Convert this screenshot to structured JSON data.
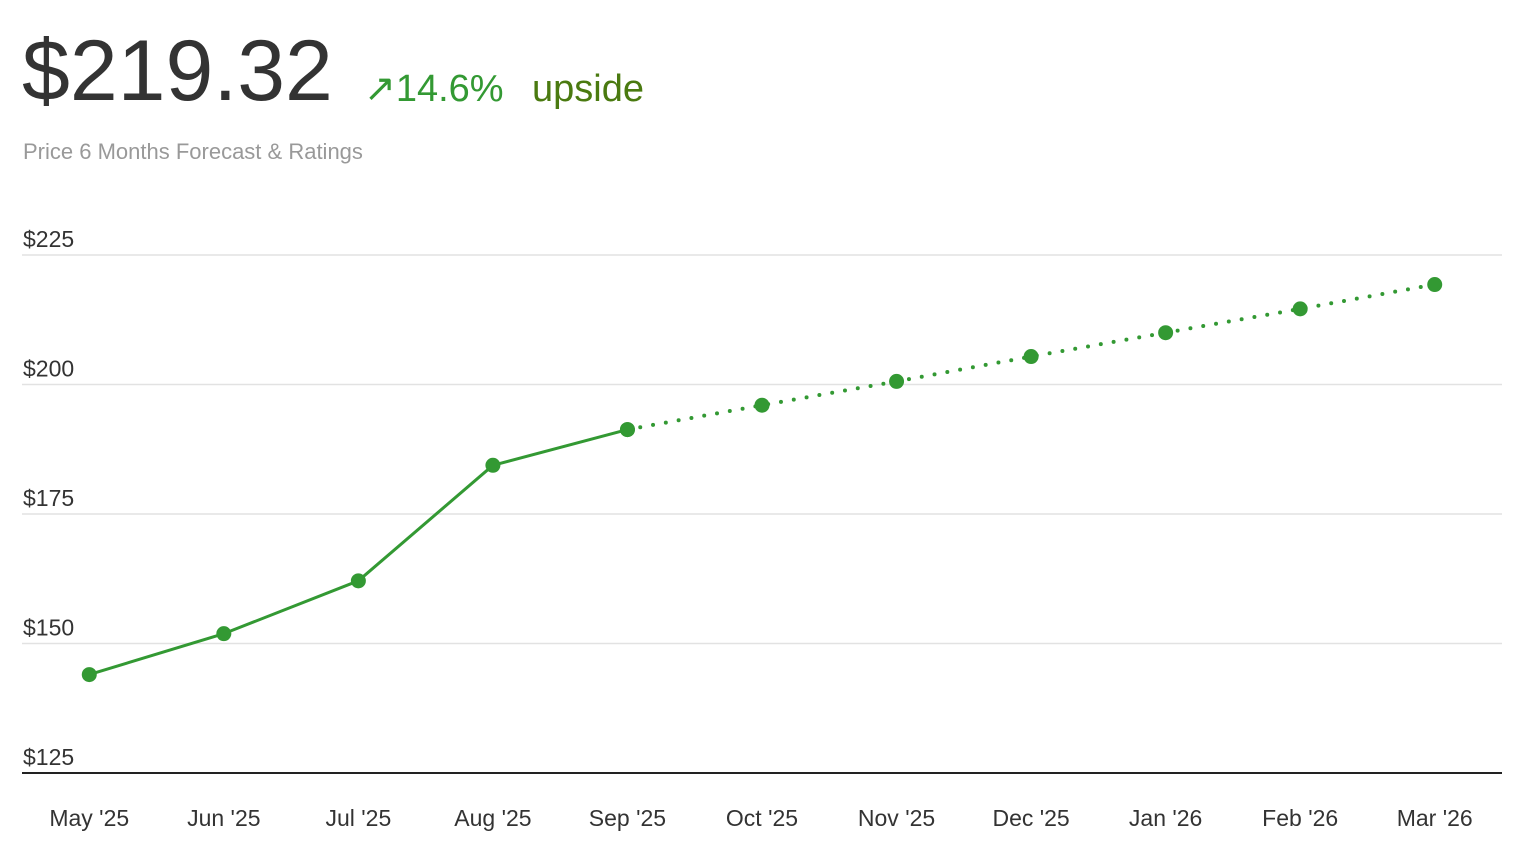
{
  "header": {
    "price": "$219.32",
    "change": "↗14.6%",
    "change_note": "upside",
    "subtitle": "Price 6 Months Forecast & Ratings"
  },
  "chart_data": {
    "type": "line",
    "categories": [
      "May '25",
      "Jun '25",
      "Jul '25",
      "Aug '25",
      "Sep '25",
      "Oct '25",
      "Nov '25",
      "Dec '25",
      "Jan '26",
      "Feb '26",
      "Mar '26"
    ],
    "series": [
      {
        "color": "#339933",
        "style": "solid",
        "values": [
          144.0,
          151.9,
          162.1,
          184.4,
          191.3,
          null,
          null,
          null,
          null,
          null,
          null
        ]
      },
      {
        "color": "#339933",
        "style": "dotted",
        "values": [
          null,
          null,
          null,
          null,
          191.3,
          196.0,
          200.6,
          205.4,
          210.0,
          214.6,
          219.3
        ]
      }
    ],
    "ylim": [
      125,
      230
    ],
    "yticks": [
      {
        "value": 125,
        "label": "$125"
      },
      {
        "value": 150,
        "label": "$150"
      },
      {
        "value": 175,
        "label": "$175"
      },
      {
        "value": 200,
        "label": "$200"
      },
      {
        "value": 225,
        "label": "$225"
      }
    ],
    "grid": true
  }
}
